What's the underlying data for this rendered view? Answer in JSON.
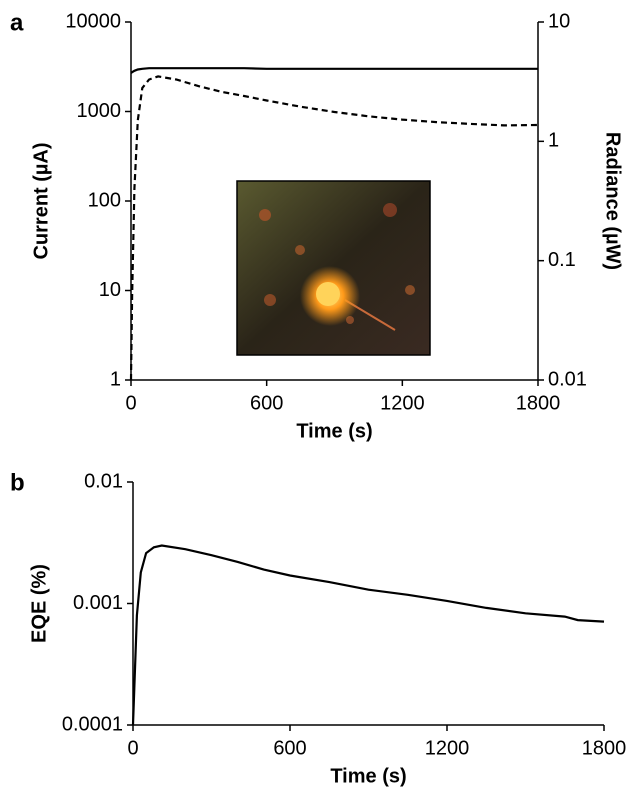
{
  "chart_data": [
    {
      "type": "line",
      "label": "a",
      "x_label": "Time (s)",
      "y_label": "Current (µA)",
      "y2_label": "Radiance (µW)",
      "x": [
        0,
        5,
        15,
        30,
        50,
        80,
        120,
        200,
        300,
        400,
        500,
        600,
        750,
        900,
        1050,
        1200,
        1350,
        1500,
        1650,
        1800
      ],
      "series": [
        {
          "color": "#000000",
          "dashed": false,
          "values": [
            2700,
            2750,
            2850,
            2950,
            3000,
            3050,
            3050,
            3050,
            3050,
            3050,
            3050,
            3000,
            3000,
            3000,
            3000,
            3000,
            3000,
            3000,
            3000,
            3000
          ]
        },
        {
          "color": "#000000",
          "dashed": true,
          "axis": "y2",
          "values": [
            0.01,
            0.05,
            0.4,
            1.5,
            2.8,
            3.3,
            3.5,
            3.3,
            2.9,
            2.6,
            2.4,
            2.2,
            1.95,
            1.76,
            1.62,
            1.52,
            1.45,
            1.4,
            1.36,
            1.37
          ]
        }
      ],
      "xlim": [
        0,
        1800
      ],
      "xticks": [
        0,
        600,
        1200,
        1800
      ],
      "ylim": [
        1,
        10000
      ],
      "yticks": [
        1,
        10,
        100,
        1000,
        10000
      ],
      "ylog": true,
      "y2lim": [
        0.01,
        10
      ],
      "y2ticks": [
        0.01,
        0.1,
        1,
        10
      ],
      "y2log": true
    },
    {
      "type": "line",
      "label": "b",
      "x_label": "Time (s)",
      "y_label": "EQE (%)",
      "x": [
        0,
        5,
        15,
        30,
        50,
        80,
        110,
        200,
        300,
        400,
        500,
        600,
        750,
        900,
        1050,
        1200,
        1350,
        1500,
        1650,
        1700,
        1800
      ],
      "series": [
        {
          "color": "#000000",
          "dashed": false,
          "values": [
            0.0001,
            0.0002,
            0.0008,
            0.0018,
            0.0026,
            0.0029,
            0.003,
            0.0028,
            0.0025,
            0.0022,
            0.0019,
            0.0017,
            0.0015,
            0.0013,
            0.00118,
            0.00105,
            0.00092,
            0.00083,
            0.00078,
            0.00073,
            0.00071
          ]
        }
      ],
      "xlim": [
        0,
        1800
      ],
      "xticks": [
        0,
        600,
        1200,
        1800
      ],
      "ylim": [
        0.0001,
        0.01
      ],
      "yticks": [
        0.0001,
        0.001,
        0.01
      ],
      "ylog": true
    }
  ]
}
